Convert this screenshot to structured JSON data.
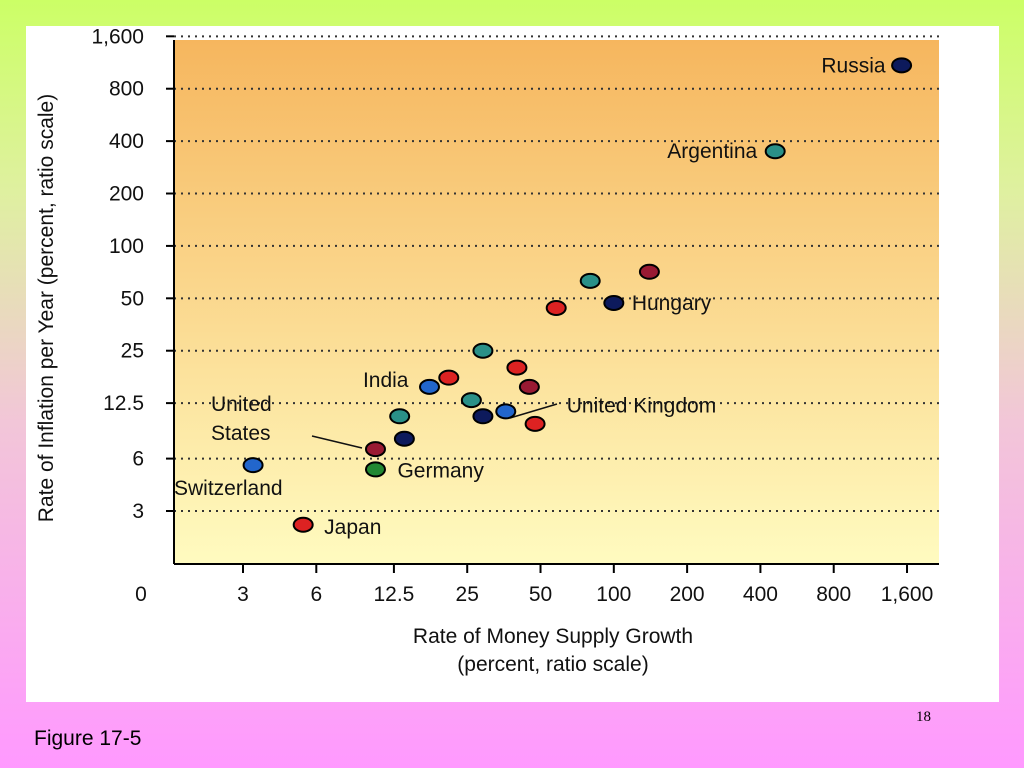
{
  "figure_caption": "Figure 17-5",
  "page_number": "18",
  "chart_data": {
    "type": "scatter",
    "title": "",
    "xlabel_lines": [
      "Rate of Money Supply Growth",
      "(percent, ratio scale)"
    ],
    "ylabel": "Rate of Inflation per Year (percent, ratio scale)",
    "x_scale": "log",
    "y_scale": "log",
    "x_ticks": [
      {
        "value": 3,
        "label": "3"
      },
      {
        "value": 6,
        "label": "6"
      },
      {
        "value": 12.5,
        "label": "12.5"
      },
      {
        "value": 25,
        "label": "25"
      },
      {
        "value": 50,
        "label": "50"
      },
      {
        "value": 100,
        "label": "100"
      },
      {
        "value": 200,
        "label": "200"
      },
      {
        "value": 400,
        "label": "400"
      },
      {
        "value": 800,
        "label": "800"
      },
      {
        "value": 1600,
        "label": "1,600"
      }
    ],
    "x_origin_label": "0",
    "y_ticks": [
      {
        "value": 3,
        "label": "3"
      },
      {
        "value": 6,
        "label": "6"
      },
      {
        "value": 12.5,
        "label": "12.5"
      },
      {
        "value": 25,
        "label": "25"
      },
      {
        "value": 50,
        "label": "50"
      },
      {
        "value": 100,
        "label": "100"
      },
      {
        "value": 200,
        "label": "200"
      },
      {
        "value": 400,
        "label": "400"
      },
      {
        "value": 800,
        "label": "800"
      },
      {
        "value": 1600,
        "label": "1,600"
      }
    ],
    "grid": "horizontal dotted",
    "colors": {
      "navy": "#0d1a5c",
      "teal": "#2a9088",
      "red": "#dd2222",
      "maroon": "#991a33",
      "blue": "#2266cc",
      "green": "#228833",
      "bg_top": "#f6b65e",
      "bg_bottom": "#fffbc0"
    },
    "points": [
      {
        "x": 1520,
        "y": 1090,
        "color": "navy",
        "label": "Russia"
      },
      {
        "x": 460,
        "y": 350,
        "color": "teal",
        "label": "Argentina"
      },
      {
        "x": 100,
        "y": 47,
        "color": "navy",
        "label": "Hungary"
      },
      {
        "x": 140,
        "y": 71,
        "color": "maroon",
        "label": ""
      },
      {
        "x": 80,
        "y": 63,
        "color": "teal",
        "label": ""
      },
      {
        "x": 58,
        "y": 44,
        "color": "red",
        "label": ""
      },
      {
        "x": 29,
        "y": 25,
        "color": "teal",
        "label": ""
      },
      {
        "x": 21,
        "y": 17.5,
        "color": "red",
        "label": ""
      },
      {
        "x": 40,
        "y": 20,
        "color": "red",
        "label": ""
      },
      {
        "x": 45,
        "y": 15.5,
        "color": "maroon",
        "label": ""
      },
      {
        "x": 17.5,
        "y": 15.5,
        "color": "blue",
        "label": "India"
      },
      {
        "x": 26,
        "y": 13,
        "color": "teal",
        "label": ""
      },
      {
        "x": 36,
        "y": 11.2,
        "color": "blue",
        "label": "United Kingdom"
      },
      {
        "x": 29,
        "y": 10.5,
        "color": "navy",
        "label": ""
      },
      {
        "x": 47.5,
        "y": 9.5,
        "color": "red",
        "label": ""
      },
      {
        "x": 13.2,
        "y": 10.5,
        "color": "teal",
        "label": ""
      },
      {
        "x": 13.8,
        "y": 7.8,
        "color": "navy",
        "label": ""
      },
      {
        "x": 10.5,
        "y": 6.8,
        "color": "maroon",
        "label": "United States"
      },
      {
        "x": 10.5,
        "y": 5.2,
        "color": "green",
        "label": "Germany"
      },
      {
        "x": 3.3,
        "y": 5.5,
        "color": "blue",
        "label": "Switzerland"
      },
      {
        "x": 5.3,
        "y": 2.5,
        "color": "red",
        "label": "Japan"
      }
    ]
  }
}
